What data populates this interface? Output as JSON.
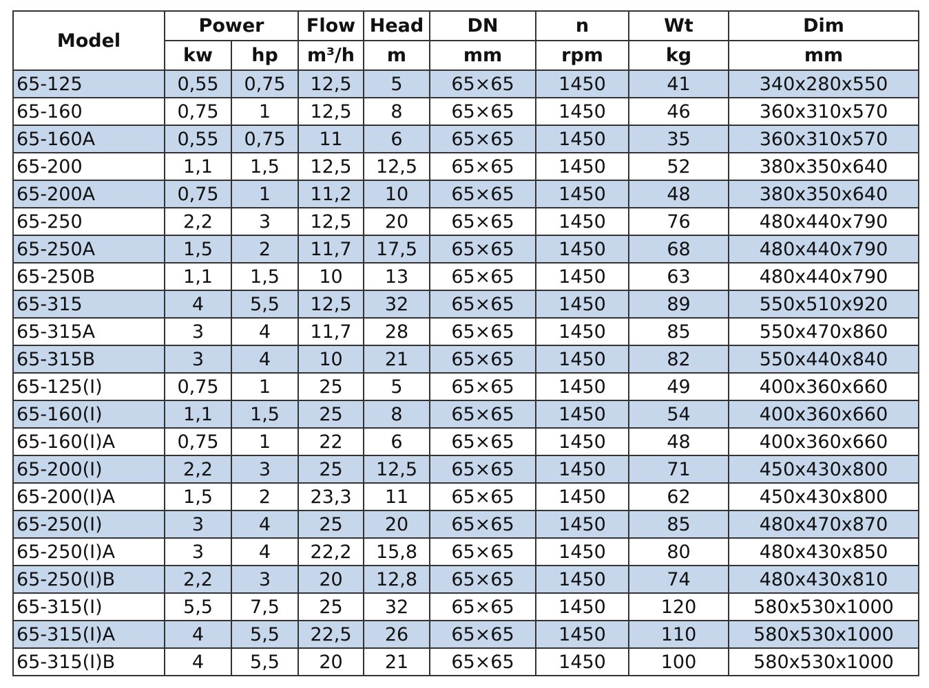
{
  "table": {
    "header": [
      [
        "Model",
        "Power",
        "Flow",
        "Head",
        "DN",
        "n",
        "Wt",
        "Dim"
      ],
      [
        "kw",
        "hp",
        "m³/h",
        "m",
        "mm",
        "rpm",
        "kg",
        "mm"
      ]
    ],
    "rows": [
      [
        "65-125",
        "0,55",
        "0,75",
        "12,5",
        "5",
        "65×65",
        "1450",
        "41",
        "340x280x550"
      ],
      [
        "65-160",
        "0,75",
        "1",
        "12,5",
        "8",
        "65×65",
        "1450",
        "46",
        "360x310x570"
      ],
      [
        "65-160A",
        "0,55",
        "0,75",
        "11",
        "6",
        "65×65",
        "1450",
        "35",
        "360x310x570"
      ],
      [
        "65-200",
        "1,1",
        "1,5",
        "12,5",
        "12,5",
        "65×65",
        "1450",
        "52",
        "380x350x640"
      ],
      [
        "65-200A",
        "0,75",
        "1",
        "11,2",
        "10",
        "65×65",
        "1450",
        "48",
        "380x350x640"
      ],
      [
        "65-250",
        "2,2",
        "3",
        "12,5",
        "20",
        "65×65",
        "1450",
        "76",
        "480x440x790"
      ],
      [
        "65-250A",
        "1,5",
        "2",
        "11,7",
        "17,5",
        "65×65",
        "1450",
        "68",
        "480x440x790"
      ],
      [
        "65-250B",
        "1,1",
        "1,5",
        "10",
        "13",
        "65×65",
        "1450",
        "63",
        "480x440x790"
      ],
      [
        "65-315",
        "4",
        "5,5",
        "12,5",
        "32",
        "65×65",
        "1450",
        "89",
        "550x510x920"
      ],
      [
        "65-315A",
        "3",
        "4",
        "11,7",
        "28",
        "65×65",
        "1450",
        "85",
        "550x470x860"
      ],
      [
        "65-315B",
        "3",
        "4",
        "10",
        "21",
        "65×65",
        "1450",
        "82",
        "550x440x840"
      ],
      [
        "65-125(I)",
        "0,75",
        "1",
        "25",
        "5",
        "65×65",
        "1450",
        "49",
        "400x360x660"
      ],
      [
        "65-160(I)",
        "1,1",
        "1,5",
        "25",
        "8",
        "65×65",
        "1450",
        "54",
        "400x360x660"
      ],
      [
        "65-160(I)A",
        "0,75",
        "1",
        "22",
        "6",
        "65×65",
        "1450",
        "48",
        "400x360x660"
      ],
      [
        "65-200(I)",
        "2,2",
        "3",
        "25",
        "12,5",
        "65×65",
        "1450",
        "71",
        "450x430x800"
      ],
      [
        "65-200(I)A",
        "1,5",
        "2",
        "23,3",
        "11",
        "65×65",
        "1450",
        "62",
        "450x430x800"
      ],
      [
        "65-250(I)",
        "3",
        "4",
        "25",
        "20",
        "65×65",
        "1450",
        "85",
        "480x470x870"
      ],
      [
        "65-250(I)A",
        "3",
        "4",
        "22,2",
        "15,8",
        "65×65",
        "1450",
        "80",
        "480x430x850"
      ],
      [
        "65-250(I)B",
        "2,2",
        "3",
        "20",
        "12,8",
        "65×65",
        "1450",
        "74",
        "480x430x810"
      ],
      [
        "65-315(I)",
        "5,5",
        "7,5",
        "25",
        "32",
        "65×65",
        "1450",
        "120",
        "580x530x1000"
      ],
      [
        "65-315(I)A",
        "4",
        "5,5",
        "22,5",
        "26",
        "65×65",
        "1450",
        "110",
        "580x530x1000"
      ],
      [
        "65-315(I)B",
        "4",
        "5,5",
        "20",
        "21",
        "65×65",
        "1450",
        "100",
        "580x530x1000"
      ]
    ]
  }
}
